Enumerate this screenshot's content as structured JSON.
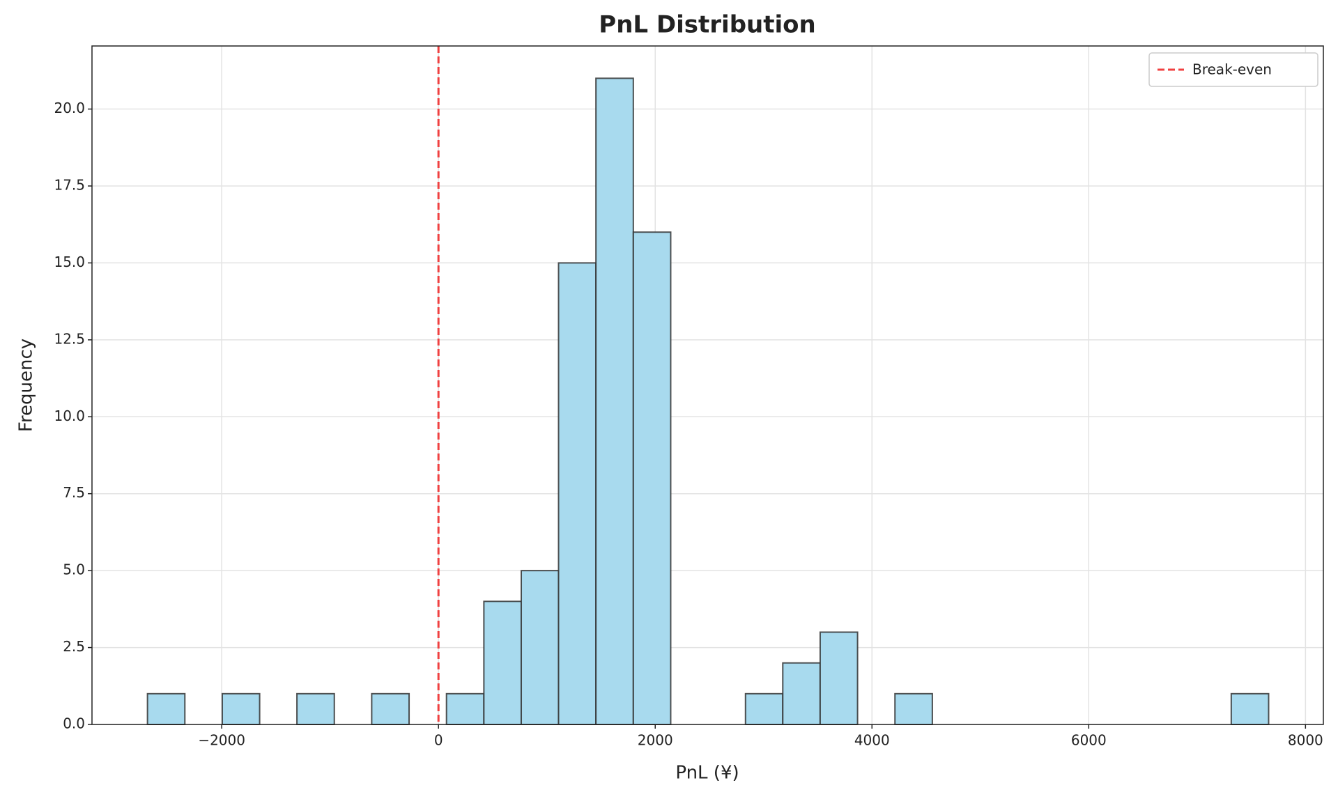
{
  "chart_data": {
    "type": "histogram",
    "title": "PnL Distribution",
    "x_label": "PnL (¥)",
    "y_label": "Frequency",
    "bins": [
      -2685,
      -2340,
      -1995,
      -1650,
      -1306,
      -961,
      -616,
      -271,
      74,
      419,
      764,
      1108,
      1453,
      1798,
      2143,
      2488,
      2833,
      3177,
      3522,
      3867,
      4212,
      4557,
      4902,
      5246,
      5591,
      5936,
      6281,
      6626,
      6971,
      7315,
      7660
    ],
    "values": [
      1,
      0,
      1,
      0,
      1,
      0,
      1,
      0,
      1,
      4,
      5,
      15,
      21,
      16,
      0,
      0,
      1,
      2,
      3,
      0,
      1,
      0,
      0,
      0,
      0,
      0,
      0,
      0,
      0,
      1
    ],
    "color": "#a8daee",
    "edge_color": "#333333",
    "vline": {
      "value": 0,
      "label": "Break-even",
      "color": "#f04040"
    },
    "xlim": [
      -3197,
      8165
    ],
    "ylim": [
      0,
      22.05
    ],
    "xticks": [
      {
        "value": -2000,
        "label": "−2000"
      },
      0,
      2000,
      4000,
      6000,
      8000
    ],
    "yticks": [
      {
        "value": 0,
        "label": "0.0"
      },
      2.5,
      {
        "value": 5,
        "label": "5.0"
      },
      7.5,
      {
        "value": 10,
        "label": "10.0"
      },
      12.5,
      {
        "value": 15,
        "label": "15.0"
      },
      17.5,
      {
        "value": 20,
        "label": "20.0"
      }
    ],
    "grid": true,
    "legend_position": "upper right"
  }
}
